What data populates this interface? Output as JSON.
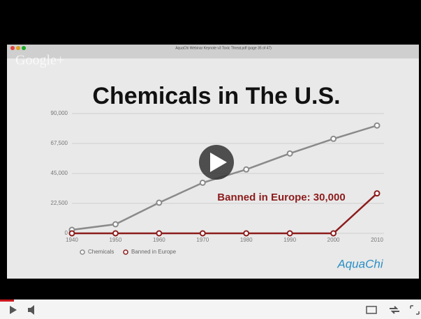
{
  "window_title": "AquaChi Webinar Keynote v3 Toxic Threat.pdf (page 35 of 47)",
  "watermark": "Google+",
  "logo": "AquaChi",
  "chart_data": {
    "type": "line",
    "title": "Chemicals in The U.S.",
    "annotation": "Banned in Europe: 30,000",
    "x": [
      1940,
      1950,
      1960,
      1970,
      1980,
      1990,
      2000,
      2010
    ],
    "xlim": [
      1940,
      2010
    ],
    "xticks": [
      1940,
      1950,
      1960,
      1970,
      1980,
      1990,
      2000,
      2010
    ],
    "ylim": [
      0,
      90000
    ],
    "yticks": [
      0,
      {
        "value": 22500,
        "label": "22,500"
      },
      {
        "value": 45000,
        "label": "45,000"
      },
      {
        "value": 67500,
        "label": "67,500"
      },
      {
        "value": 90000,
        "label": "90,000"
      }
    ],
    "grid": true,
    "series": [
      {
        "name": "Chemicals",
        "color": "#8a8a8a",
        "values": [
          2600,
          6800,
          23000,
          38000,
          48000,
          60000,
          71000,
          81000
        ]
      },
      {
        "name": "Banned in Europe",
        "color": "#8c1c1c",
        "values": [
          0,
          0,
          0,
          0,
          0,
          0,
          0,
          30000
        ]
      }
    ]
  }
}
